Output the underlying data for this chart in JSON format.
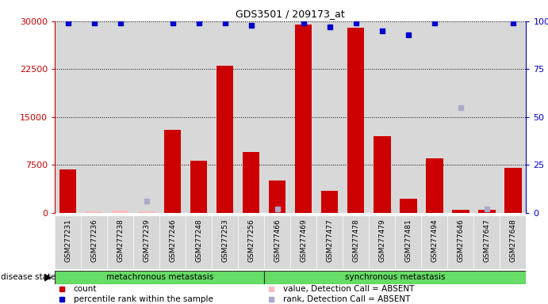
{
  "title": "GDS3501 / 209173_at",
  "samples": [
    "GSM277231",
    "GSM277236",
    "GSM277238",
    "GSM277239",
    "GSM277246",
    "GSM277248",
    "GSM277253",
    "GSM277256",
    "GSM277466",
    "GSM277469",
    "GSM277477",
    "GSM277478",
    "GSM277479",
    "GSM277481",
    "GSM277494",
    "GSM277646",
    "GSM277647",
    "GSM277648"
  ],
  "bar_values": [
    6800,
    200,
    300,
    200,
    13000,
    8200,
    23000,
    9500,
    5000,
    29500,
    3500,
    29000,
    12000,
    2200,
    8500,
    500,
    500,
    7000
  ],
  "bar_absent": [
    false,
    true,
    true,
    true,
    false,
    false,
    false,
    false,
    false,
    false,
    false,
    false,
    false,
    false,
    false,
    false,
    false,
    false
  ],
  "percentile_values": [
    99,
    99,
    99,
    null,
    99,
    99,
    99,
    98,
    null,
    99,
    97,
    99,
    95,
    93,
    99,
    null,
    null,
    99
  ],
  "percentile_absent": [
    false,
    false,
    false,
    true,
    false,
    false,
    false,
    false,
    true,
    false,
    false,
    false,
    false,
    false,
    false,
    true,
    true,
    false
  ],
  "absent_rank_values": [
    null,
    null,
    null,
    6,
    null,
    null,
    null,
    null,
    2,
    null,
    null,
    null,
    null,
    null,
    null,
    55,
    2,
    null
  ],
  "group_boundary": 8,
  "group1_label": "metachronous metastasis",
  "group2_label": "synchronous metastasis",
  "group_color": "#66dd66",
  "bar_color": "#cc0000",
  "absent_bar_color": "#ffbbbb",
  "rank_color": "#0000cc",
  "absent_rank_color": "#aaaacc",
  "bg_color": "#d8d8d8",
  "ylim_left": [
    0,
    30000
  ],
  "ylim_right": [
    0,
    100
  ],
  "yticks_left": [
    0,
    7500,
    15000,
    22500,
    30000
  ],
  "yticks_right": [
    0,
    25,
    50,
    75,
    100
  ],
  "grid_values": [
    7500,
    15000,
    22500,
    30000
  ],
  "left_tick_color": "#cc0000",
  "right_tick_color": "#0000cc"
}
